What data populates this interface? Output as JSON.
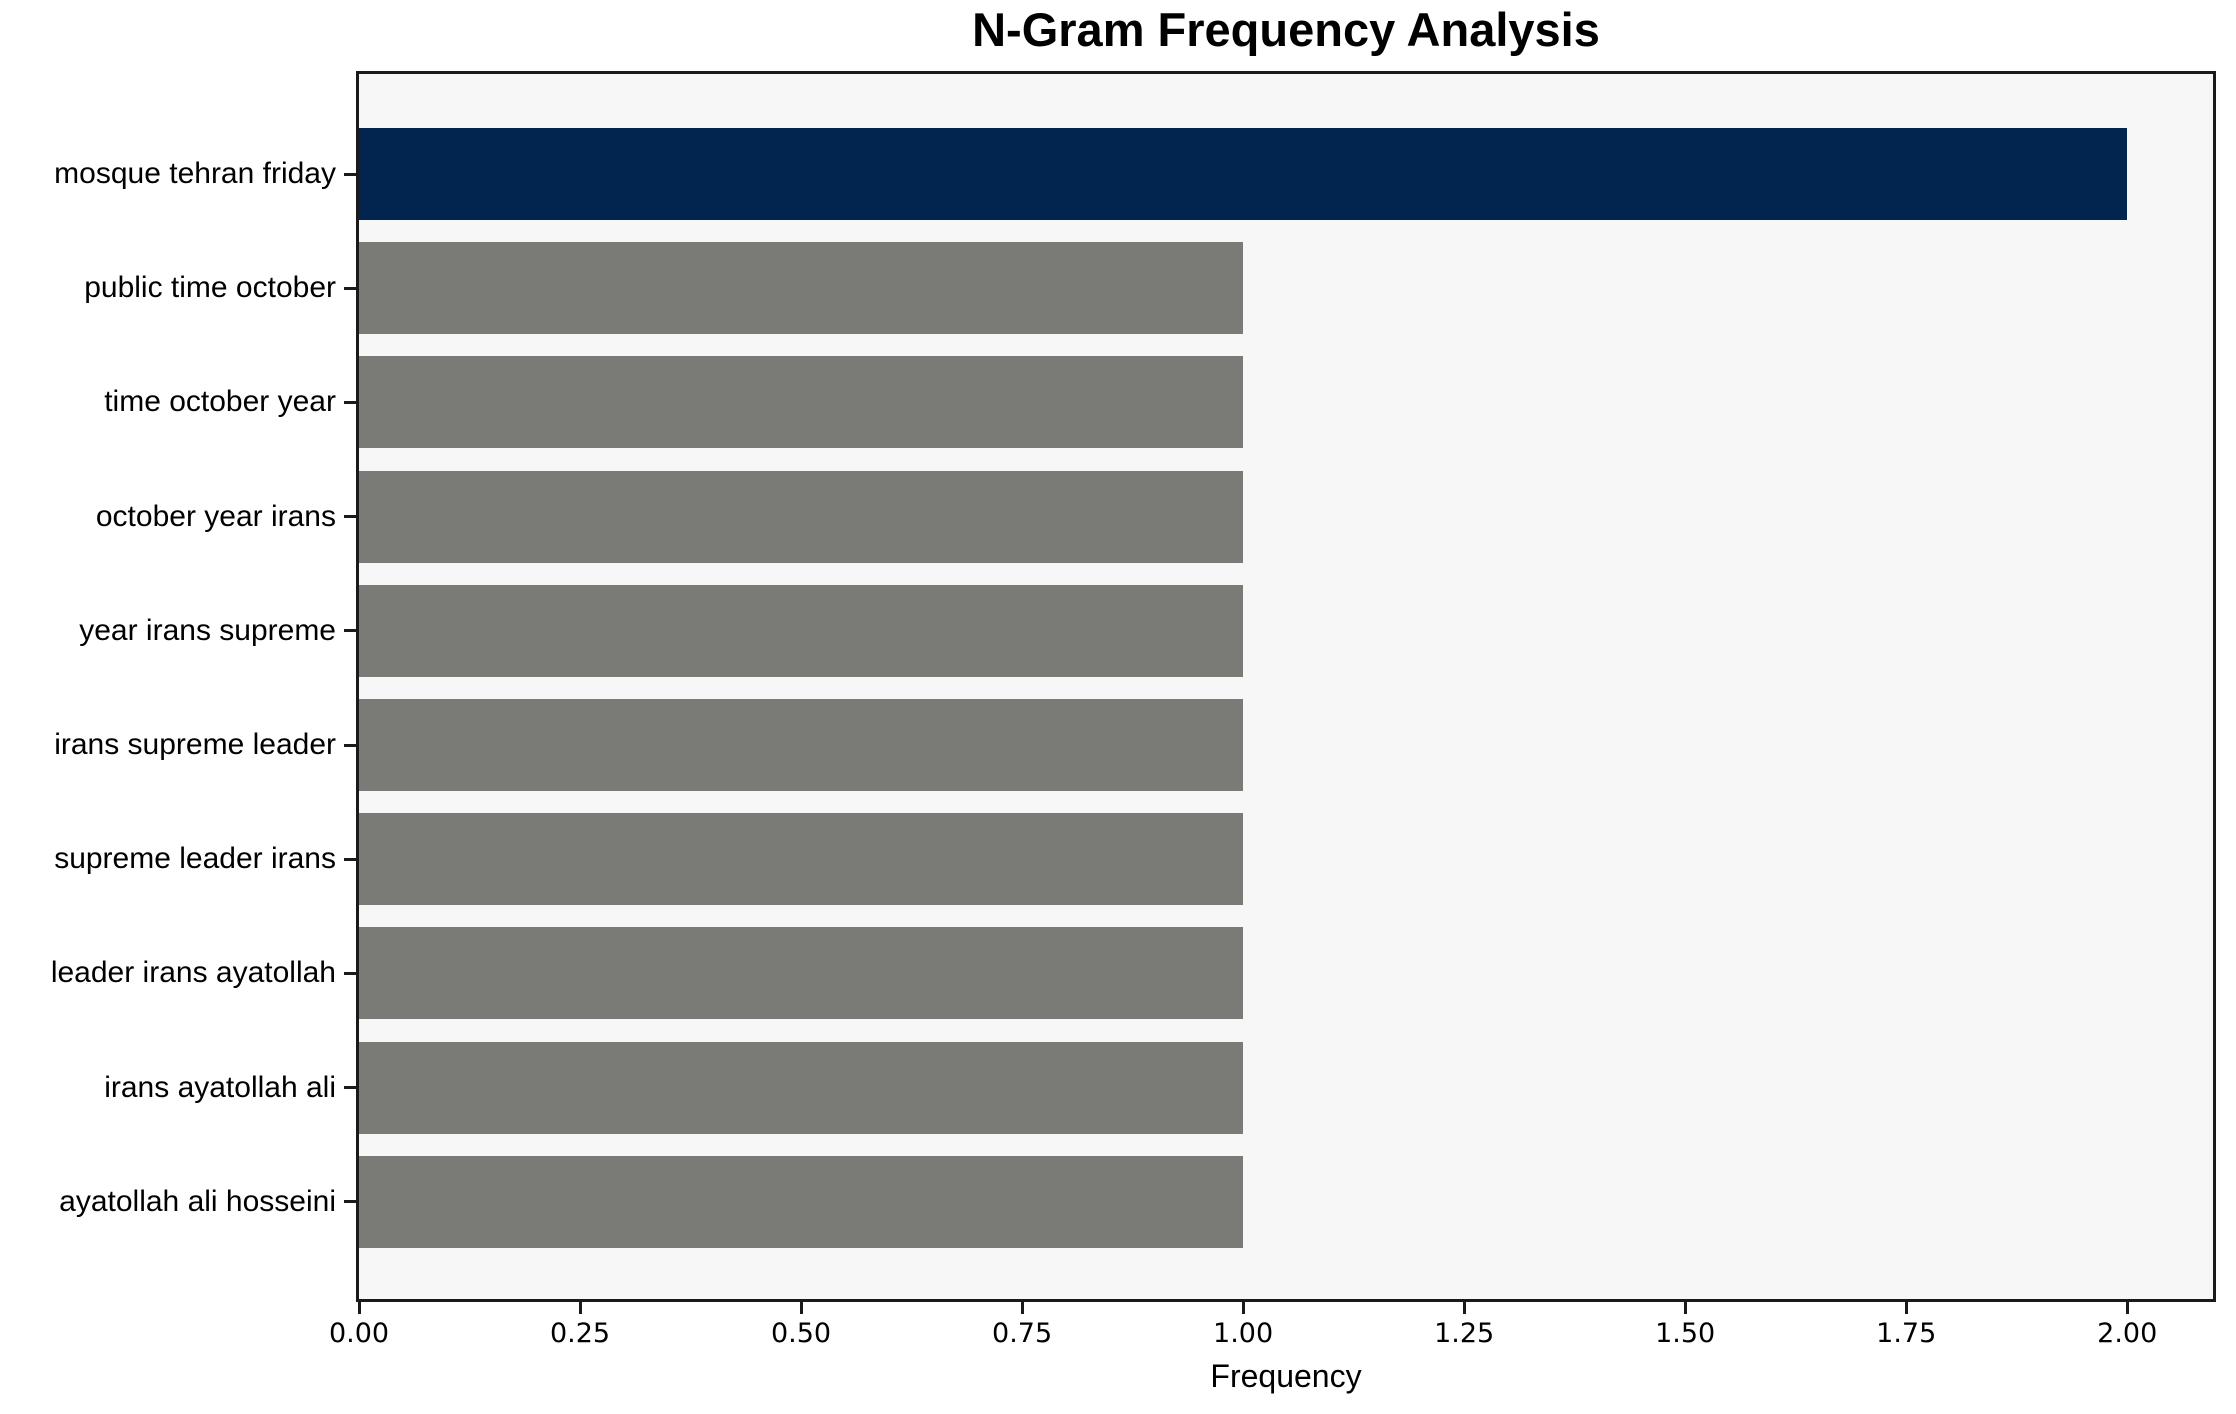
{
  "chart_data": {
    "type": "bar",
    "orientation": "horizontal",
    "title": "N-Gram Frequency Analysis",
    "xlabel": "Frequency",
    "ylabel": "",
    "categories": [
      "mosque tehran friday",
      "public time october",
      "time october year",
      "october year irans",
      "year irans supreme",
      "irans supreme leader",
      "supreme leader irans",
      "leader irans ayatollah",
      "irans ayatollah ali",
      "ayatollah ali hosseini"
    ],
    "values": [
      2.0,
      1.0,
      1.0,
      1.0,
      1.0,
      1.0,
      1.0,
      1.0,
      1.0,
      1.0
    ],
    "bar_colors": [
      "#022550",
      "#7a7a77",
      "#7a7a77",
      "#7a7a77",
      "#7a7a77",
      "#7a7a77",
      "#7a7a77",
      "#7a7a77",
      "#7a7a77",
      "#7a7a77"
    ],
    "xlim": [
      0,
      2.097
    ],
    "xtick_labels": [
      "0.00",
      "0.25",
      "0.50",
      "0.75",
      "1.00",
      "1.25",
      "1.50",
      "1.75",
      "2.00"
    ],
    "xtick_values": [
      0,
      0.25,
      0.5,
      0.75,
      1.0,
      1.25,
      1.5,
      1.75,
      2.0
    ],
    "grid": false,
    "legend": null,
    "colors": {
      "highlight_bar": "#022550",
      "default_bar": "#7a7a77",
      "plot_background": "#f7f7f7",
      "figure_background": "#ffffff",
      "spine": "#1a1a1a",
      "text": "#000000"
    }
  }
}
